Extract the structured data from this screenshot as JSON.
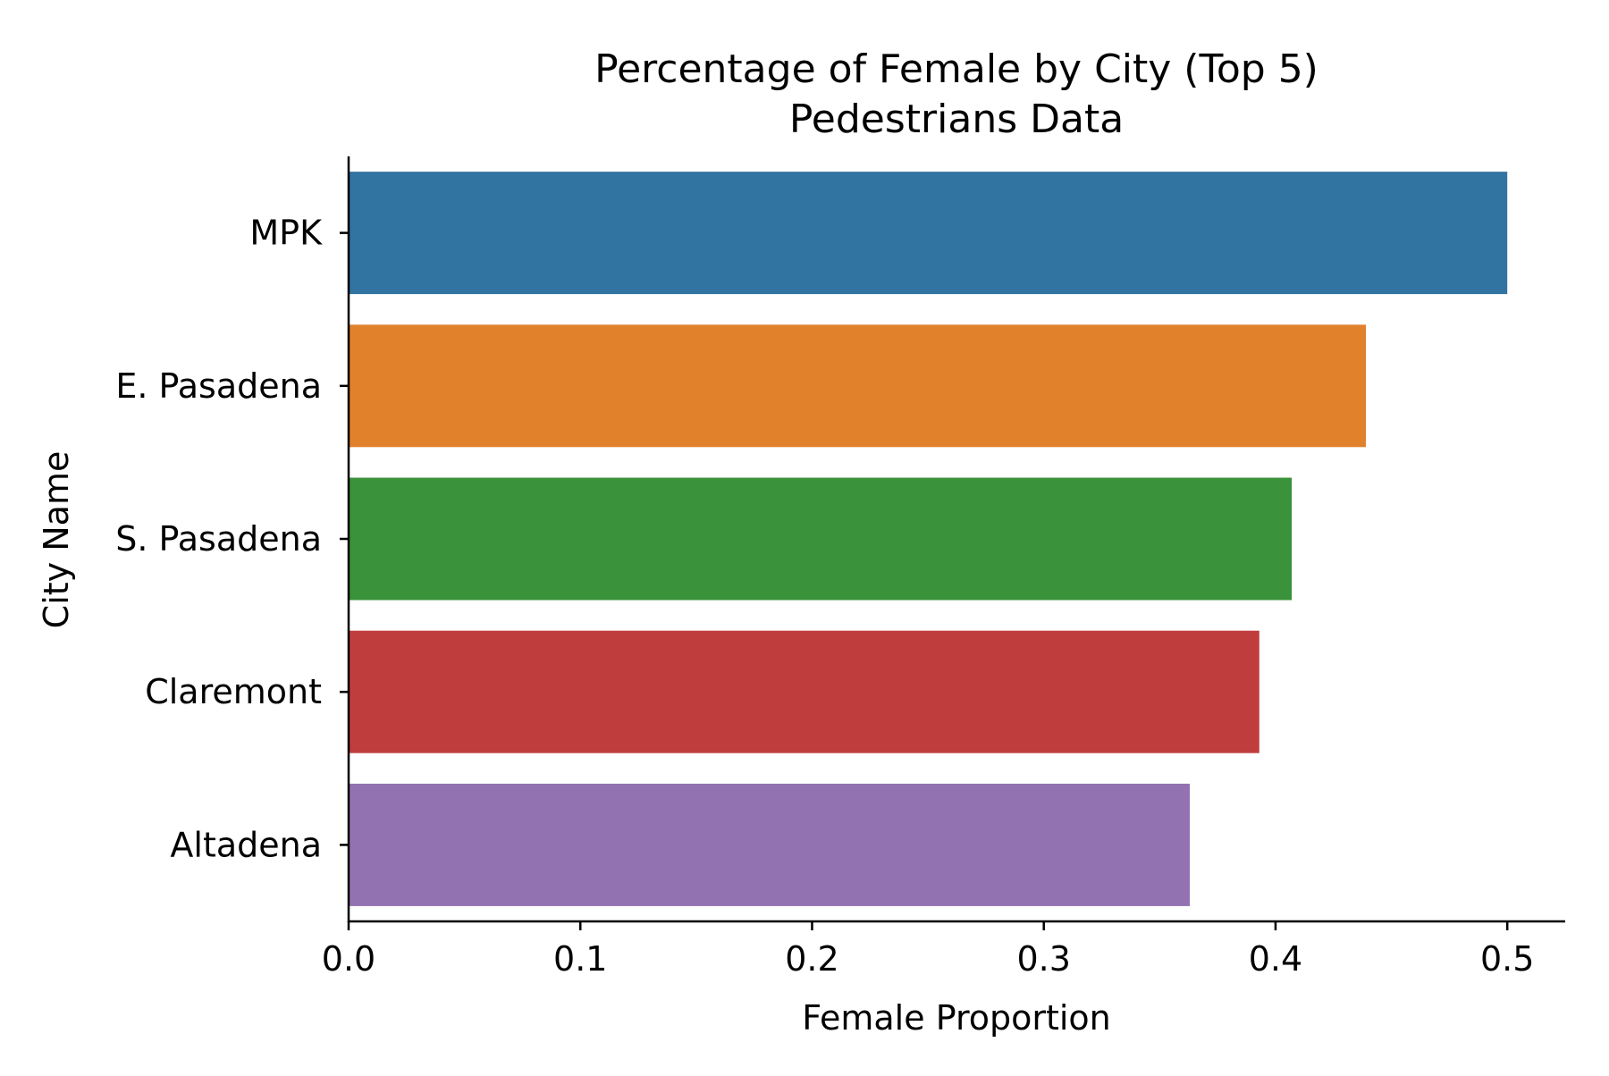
{
  "chart_data": {
    "type": "bar",
    "orientation": "horizontal",
    "title_line1": "Percentage of Female by City (Top 5)",
    "title_line2": "Pedestrians Data",
    "xlabel": "Female Proportion",
    "ylabel": "City Name",
    "categories": [
      "MPK",
      "E. Pasadena",
      "S. Pasadena",
      "Claremont",
      "Altadena"
    ],
    "values": [
      0.5,
      0.439,
      0.407,
      0.393,
      0.363
    ],
    "colors": [
      "#3274a1",
      "#e1812c",
      "#3a923a",
      "#c03d3e",
      "#9372b2"
    ],
    "xlim": [
      0,
      0.525
    ],
    "xticks": [
      0.0,
      0.1,
      0.2,
      0.3,
      0.4,
      0.5
    ],
    "xtick_labels": [
      "0.0",
      "0.1",
      "0.2",
      "0.3",
      "0.4",
      "0.5"
    ],
    "grid": false,
    "legend": false
  }
}
